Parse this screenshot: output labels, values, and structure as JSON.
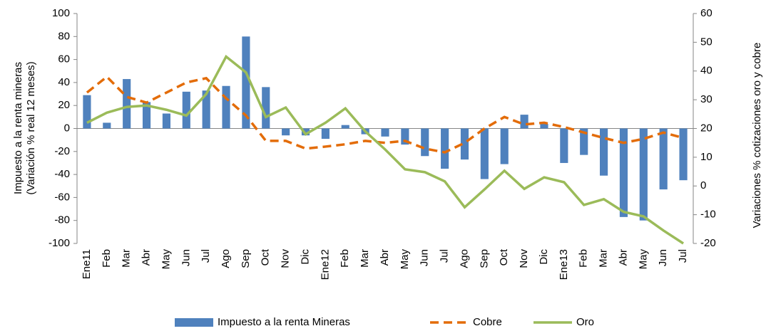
{
  "chart_data": {
    "type": "combo",
    "categories": [
      "Ene11",
      "Feb",
      "Mar",
      "Abr",
      "May",
      "Jun",
      "Jul",
      "Ago",
      "Sep",
      "Oct",
      "Nov",
      "Dic",
      "Ene12",
      "Feb",
      "Mar",
      "Abr",
      "May",
      "Jun",
      "Jul",
      "Ago",
      "Sep",
      "Oct",
      "Nov",
      "Dic",
      "Ene13",
      "Feb",
      "Mar",
      "Abr",
      "May",
      "Jun",
      "Jul"
    ],
    "ylabel": [
      "Impuesto a la renta mineras",
      "(Variación %  real 12 meses)"
    ],
    "y2label": "Variaciones % cotizaciones oro y cobre",
    "ylim": [
      -100,
      100
    ],
    "yticks": [
      -100,
      -80,
      -60,
      -40,
      -20,
      0,
      20,
      40,
      60,
      80,
      100
    ],
    "y2lim": [
      -20,
      60
    ],
    "y2ticks": [
      -20,
      -10,
      0,
      10,
      20,
      30,
      40,
      50,
      60
    ],
    "grid": false,
    "legend": "bottom",
    "series": [
      {
        "name": "Impuesto a la renta Mineras",
        "type": "bar",
        "color": "#4f81bd",
        "values": [
          29,
          5,
          43,
          23,
          13,
          32,
          33,
          37,
          80,
          36,
          -6,
          -6,
          -9,
          3,
          -5,
          -7,
          -14,
          -24,
          -35,
          -27,
          -44,
          -31,
          12,
          4,
          -30,
          -23,
          -41,
          -77,
          -80,
          -53,
          -45
        ]
      },
      {
        "name": "Cobre",
        "type": "line",
        "dashed": true,
        "axis": "y2",
        "color": "#e36c09",
        "values": [
          32.5,
          38,
          31,
          29,
          32.5,
          36,
          37.5,
          30.5,
          24.5,
          15.7,
          15.7,
          13,
          13.7,
          14.5,
          15.7,
          15,
          15.7,
          13,
          11.7,
          15,
          20,
          24,
          21.4,
          22,
          20.5,
          18.6,
          16.7,
          15,
          16.4,
          18.6,
          16.7
        ]
      },
      {
        "name": "Oro",
        "type": "line",
        "dashed": false,
        "axis": "y2",
        "color": "#9bbb59",
        "values": [
          22,
          25.5,
          27.5,
          28,
          26.5,
          24.5,
          32,
          45,
          39.5,
          24,
          27.3,
          18,
          22,
          27,
          19,
          12.7,
          5.8,
          4.8,
          1.6,
          -7.4,
          -1.2,
          5.3,
          -1,
          3,
          1.3,
          -6.6,
          -4.6,
          -9,
          -10.6,
          -15.5,
          -20
        ]
      }
    ]
  }
}
